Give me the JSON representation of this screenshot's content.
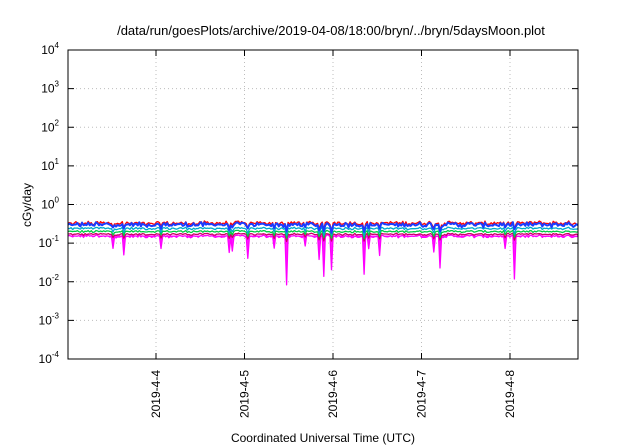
{
  "chart_data": {
    "type": "line",
    "title": "/data/run/goesPlots/archive/2019-04-08/18:00/bryn/../bryn/5daysMoon.plot",
    "xlabel": "Coordinated Universal Time (UTC)",
    "ylabel": "cGy/day",
    "yscale": "log",
    "ylim": [
      0.0001,
      10000
    ],
    "y_ticks": [
      {
        "base": "10",
        "exp": "-4"
      },
      {
        "base": "10",
        "exp": "-3"
      },
      {
        "base": "10",
        "exp": "-2"
      },
      {
        "base": "10",
        "exp": "-1"
      },
      {
        "base": "10",
        "exp": "0"
      },
      {
        "base": "10",
        "exp": "1"
      },
      {
        "base": "10",
        "exp": "2"
      },
      {
        "base": "10",
        "exp": "3"
      },
      {
        "base": "10",
        "exp": "4"
      }
    ],
    "xlim": [
      "2019-04-03 01:00",
      "2019-04-08 18:00"
    ],
    "x_ticks": [
      {
        "label": "2019-4-4",
        "day": 1
      },
      {
        "label": "2019-4-5",
        "day": 2
      },
      {
        "label": "2019-4-6",
        "day": 3
      },
      {
        "label": "2019-4-7",
        "day": 4
      },
      {
        "label": "2019-4-8",
        "day": 5
      }
    ],
    "grid": true,
    "series": [
      {
        "color": "#ff00ff",
        "level": 0.15,
        "noise": 0.07,
        "dips": true
      },
      {
        "color": "#cc0066",
        "level": 0.17,
        "noise": 0.05,
        "dips": false
      },
      {
        "color": "#00cc44",
        "level": 0.2,
        "noise": 0.05,
        "dips": false
      },
      {
        "color": "#00aacc",
        "level": 0.24,
        "noise": 0.06,
        "dips": false
      },
      {
        "color": "#ff0000",
        "level": 0.33,
        "noise": 0.1,
        "dips": false
      },
      {
        "color": "#1a3cff",
        "level": 0.3,
        "noise": 0.11,
        "dips": false
      }
    ]
  }
}
